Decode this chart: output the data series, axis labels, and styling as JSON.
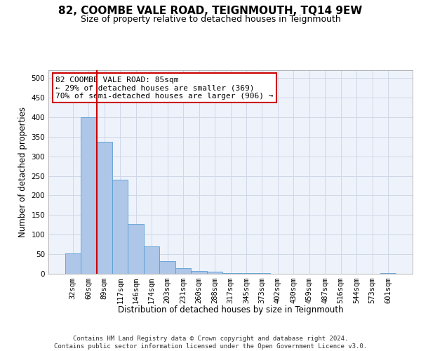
{
  "title": "82, COOMBE VALE ROAD, TEIGNMOUTH, TQ14 9EW",
  "subtitle": "Size of property relative to detached houses in Teignmouth",
  "xlabel": "Distribution of detached houses by size in Teignmouth",
  "ylabel": "Number of detached properties",
  "categories": [
    "32sqm",
    "60sqm",
    "89sqm",
    "117sqm",
    "146sqm",
    "174sqm",
    "203sqm",
    "231sqm",
    "260sqm",
    "288sqm",
    "317sqm",
    "345sqm",
    "373sqm",
    "402sqm",
    "430sqm",
    "459sqm",
    "487sqm",
    "516sqm",
    "544sqm",
    "573sqm",
    "601sqm"
  ],
  "values": [
    52,
    400,
    338,
    240,
    128,
    70,
    33,
    15,
    8,
    5,
    2,
    1,
    1,
    0.5,
    0.5,
    0,
    0.5,
    0,
    0,
    0,
    1
  ],
  "bar_color": "#aec6e8",
  "bar_edge_color": "#5a9fd4",
  "vline_x": 1.5,
  "vline_color": "#cc0000",
  "annotation_text": "82 COOMBE VALE ROAD: 85sqm\n← 29% of detached houses are smaller (369)\n70% of semi-detached houses are larger (906) →",
  "annotation_box_color": "#ffffff",
  "annotation_box_edge_color": "#cc0000",
  "ylim": [
    0,
    520
  ],
  "yticks": [
    0,
    50,
    100,
    150,
    200,
    250,
    300,
    350,
    400,
    450,
    500
  ],
  "grid_color": "#d0d8e8",
  "background_color": "#eef2fa",
  "footer_text": "Contains HM Land Registry data © Crown copyright and database right 2024.\nContains public sector information licensed under the Open Government Licence v3.0.",
  "title_fontsize": 11,
  "subtitle_fontsize": 9,
  "axis_label_fontsize": 8.5,
  "tick_fontsize": 7.5,
  "annotation_fontsize": 8,
  "footer_fontsize": 6.5
}
